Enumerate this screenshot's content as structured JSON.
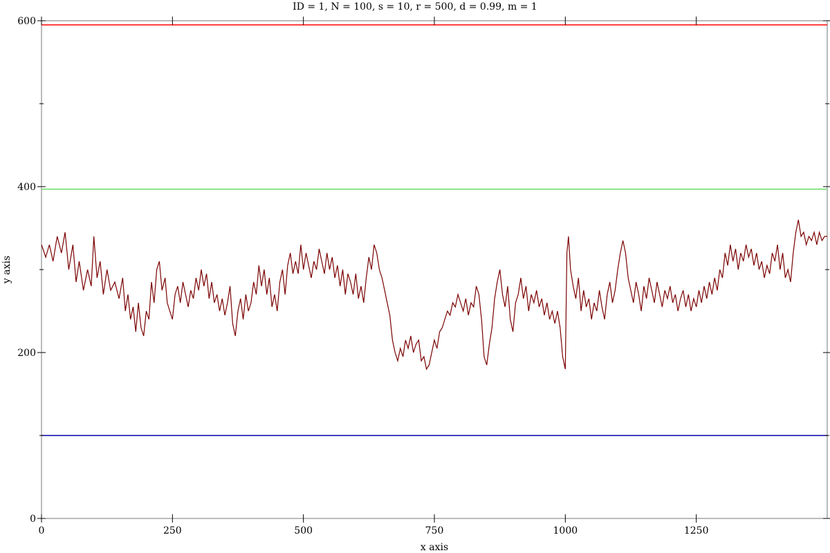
{
  "chart_data": {
    "type": "line",
    "title": "ID = 1, N = 100, s = 10, r = 500, d = 0.99, m = 1",
    "xlabel": "x axis",
    "ylabel": "y axis",
    "xlim": [
      0,
      1500
    ],
    "ylim": [
      0,
      600
    ],
    "x_ticks": [
      0,
      250,
      500,
      750,
      1000,
      1250
    ],
    "y_ticks": [
      0,
      200,
      400,
      600
    ],
    "x_tick_labels": [
      "0",
      "250",
      "500",
      "750",
      "1000",
      "1250"
    ],
    "y_tick_labels": [
      "0",
      "200",
      "400",
      "600"
    ],
    "grid": false,
    "legend": "none",
    "reference_lines": [
      {
        "y": 595,
        "color": "#ff0000"
      },
      {
        "y": 397,
        "color": "#66dd66"
      },
      {
        "y": 100,
        "color": "#0000aa"
      }
    ],
    "series": [
      {
        "color": "#7a0000",
        "points": [
          [
            0,
            330
          ],
          [
            8,
            315
          ],
          [
            15,
            330
          ],
          [
            22,
            310
          ],
          [
            30,
            340
          ],
          [
            38,
            320
          ],
          [
            45,
            345
          ],
          [
            52,
            300
          ],
          [
            60,
            330
          ],
          [
            66,
            285
          ],
          [
            72,
            310
          ],
          [
            80,
            275
          ],
          [
            88,
            300
          ],
          [
            95,
            280
          ],
          [
            100,
            340
          ],
          [
            106,
            290
          ],
          [
            112,
            310
          ],
          [
            118,
            270
          ],
          [
            125,
            300
          ],
          [
            132,
            275
          ],
          [
            140,
            285
          ],
          [
            148,
            265
          ],
          [
            155,
            290
          ],
          [
            160,
            250
          ],
          [
            165,
            270
          ],
          [
            170,
            240
          ],
          [
            175,
            255
          ],
          [
            180,
            225
          ],
          [
            185,
            260
          ],
          [
            190,
            230
          ],
          [
            195,
            220
          ],
          [
            200,
            250
          ],
          [
            205,
            240
          ],
          [
            210,
            285
          ],
          [
            215,
            260
          ],
          [
            220,
            300
          ],
          [
            225,
            310
          ],
          [
            230,
            275
          ],
          [
            236,
            290
          ],
          [
            240,
            260
          ],
          [
            245,
            250
          ],
          [
            250,
            240
          ],
          [
            255,
            270
          ],
          [
            260,
            280
          ],
          [
            265,
            260
          ],
          [
            270,
            285
          ],
          [
            275,
            270
          ],
          [
            280,
            255
          ],
          [
            285,
            275
          ],
          [
            290,
            265
          ],
          [
            295,
            290
          ],
          [
            300,
            275
          ],
          [
            305,
            300
          ],
          [
            310,
            280
          ],
          [
            315,
            295
          ],
          [
            320,
            265
          ],
          [
            325,
            285
          ],
          [
            330,
            260
          ],
          [
            335,
            270
          ],
          [
            340,
            250
          ],
          [
            345,
            265
          ],
          [
            350,
            245
          ],
          [
            355,
            260
          ],
          [
            360,
            280
          ],
          [
            365,
            235
          ],
          [
            370,
            220
          ],
          [
            375,
            250
          ],
          [
            380,
            265
          ],
          [
            385,
            240
          ],
          [
            390,
            270
          ],
          [
            395,
            250
          ],
          [
            400,
            260
          ],
          [
            405,
            285
          ],
          [
            410,
            270
          ],
          [
            415,
            305
          ],
          [
            420,
            280
          ],
          [
            425,
            300
          ],
          [
            430,
            270
          ],
          [
            435,
            290
          ],
          [
            440,
            255
          ],
          [
            445,
            270
          ],
          [
            450,
            250
          ],
          [
            455,
            285
          ],
          [
            460,
            300
          ],
          [
            465,
            270
          ],
          [
            470,
            305
          ],
          [
            475,
            320
          ],
          [
            480,
            295
          ],
          [
            485,
            310
          ],
          [
            490,
            295
          ],
          [
            495,
            330
          ],
          [
            500,
            300
          ],
          [
            505,
            320
          ],
          [
            510,
            305
          ],
          [
            515,
            290
          ],
          [
            520,
            310
          ],
          [
            525,
            300
          ],
          [
            530,
            325
          ],
          [
            535,
            310
          ],
          [
            540,
            295
          ],
          [
            545,
            320
          ],
          [
            550,
            300
          ],
          [
            555,
            315
          ],
          [
            560,
            290
          ],
          [
            565,
            305
          ],
          [
            570,
            280
          ],
          [
            575,
            300
          ],
          [
            580,
            270
          ],
          [
            585,
            295
          ],
          [
            590,
            285
          ],
          [
            595,
            270
          ],
          [
            600,
            295
          ],
          [
            605,
            265
          ],
          [
            610,
            280
          ],
          [
            615,
            260
          ],
          [
            620,
            290
          ],
          [
            625,
            315
          ],
          [
            630,
            300
          ],
          [
            635,
            330
          ],
          [
            640,
            320
          ],
          [
            645,
            300
          ],
          [
            650,
            290
          ],
          [
            655,
            275
          ],
          [
            660,
            260
          ],
          [
            665,
            245
          ],
          [
            670,
            215
          ],
          [
            675,
            200
          ],
          [
            680,
            190
          ],
          [
            685,
            205
          ],
          [
            690,
            195
          ],
          [
            695,
            215
          ],
          [
            700,
            205
          ],
          [
            705,
            220
          ],
          [
            710,
            200
          ],
          [
            715,
            210
          ],
          [
            720,
            215
          ],
          [
            725,
            190
          ],
          [
            730,
            195
          ],
          [
            735,
            180
          ],
          [
            740,
            185
          ],
          [
            745,
            200
          ],
          [
            750,
            215
          ],
          [
            755,
            205
          ],
          [
            760,
            225
          ],
          [
            765,
            230
          ],
          [
            770,
            240
          ],
          [
            775,
            250
          ],
          [
            780,
            245
          ],
          [
            785,
            260
          ],
          [
            790,
            255
          ],
          [
            795,
            270
          ],
          [
            800,
            260
          ],
          [
            805,
            250
          ],
          [
            810,
            265
          ],
          [
            815,
            245
          ],
          [
            820,
            260
          ],
          [
            825,
            255
          ],
          [
            830,
            280
          ],
          [
            835,
            270
          ],
          [
            840,
            240
          ],
          [
            845,
            195
          ],
          [
            850,
            185
          ],
          [
            855,
            210
          ],
          [
            860,
            230
          ],
          [
            865,
            265
          ],
          [
            870,
            285
          ],
          [
            875,
            300
          ],
          [
            880,
            270
          ],
          [
            885,
            255
          ],
          [
            890,
            280
          ],
          [
            895,
            240
          ],
          [
            900,
            225
          ],
          [
            905,
            260
          ],
          [
            910,
            270
          ],
          [
            915,
            290
          ],
          [
            920,
            265
          ],
          [
            925,
            280
          ],
          [
            930,
            250
          ],
          [
            935,
            270
          ],
          [
            940,
            260
          ],
          [
            945,
            275
          ],
          [
            950,
            255
          ],
          [
            955,
            265
          ],
          [
            960,
            245
          ],
          [
            965,
            260
          ],
          [
            970,
            240
          ],
          [
            975,
            250
          ],
          [
            980,
            235
          ],
          [
            985,
            250
          ],
          [
            990,
            230
          ],
          [
            995,
            195
          ],
          [
            1000,
            180
          ],
          [
            1003,
            320
          ],
          [
            1006,
            340
          ],
          [
            1010,
            300
          ],
          [
            1015,
            280
          ],
          [
            1020,
            265
          ],
          [
            1025,
            290
          ],
          [
            1030,
            250
          ],
          [
            1035,
            275
          ],
          [
            1040,
            255
          ],
          [
            1045,
            265
          ],
          [
            1050,
            240
          ],
          [
            1055,
            260
          ],
          [
            1060,
            250
          ],
          [
            1065,
            275
          ],
          [
            1070,
            255
          ],
          [
            1075,
            240
          ],
          [
            1080,
            270
          ],
          [
            1085,
            285
          ],
          [
            1090,
            260
          ],
          [
            1095,
            275
          ],
          [
            1100,
            300
          ],
          [
            1105,
            320
          ],
          [
            1110,
            335
          ],
          [
            1115,
            320
          ],
          [
            1120,
            290
          ],
          [
            1125,
            275
          ],
          [
            1130,
            260
          ],
          [
            1135,
            285
          ],
          [
            1140,
            270
          ],
          [
            1145,
            250
          ],
          [
            1150,
            280
          ],
          [
            1155,
            265
          ],
          [
            1160,
            290
          ],
          [
            1165,
            275
          ],
          [
            1170,
            260
          ],
          [
            1175,
            285
          ],
          [
            1180,
            270
          ],
          [
            1185,
            255
          ],
          [
            1190,
            275
          ],
          [
            1195,
            265
          ],
          [
            1200,
            280
          ],
          [
            1205,
            260
          ],
          [
            1210,
            270
          ],
          [
            1215,
            250
          ],
          [
            1220,
            265
          ],
          [
            1225,
            275
          ],
          [
            1230,
            255
          ],
          [
            1235,
            270
          ],
          [
            1240,
            250
          ],
          [
            1245,
            265
          ],
          [
            1250,
            255
          ],
          [
            1255,
            275
          ],
          [
            1260,
            260
          ],
          [
            1265,
            280
          ],
          [
            1270,
            265
          ],
          [
            1275,
            285
          ],
          [
            1280,
            270
          ],
          [
            1285,
            290
          ],
          [
            1290,
            275
          ],
          [
            1295,
            300
          ],
          [
            1300,
            290
          ],
          [
            1305,
            320
          ],
          [
            1310,
            305
          ],
          [
            1315,
            330
          ],
          [
            1320,
            310
          ],
          [
            1325,
            325
          ],
          [
            1330,
            300
          ],
          [
            1335,
            320
          ],
          [
            1340,
            310
          ],
          [
            1345,
            330
          ],
          [
            1350,
            315
          ],
          [
            1355,
            325
          ],
          [
            1360,
            305
          ],
          [
            1365,
            320
          ],
          [
            1370,
            300
          ],
          [
            1375,
            310
          ],
          [
            1380,
            290
          ],
          [
            1385,
            305
          ],
          [
            1390,
            295
          ],
          [
            1395,
            320
          ],
          [
            1400,
            310
          ],
          [
            1405,
            330
          ],
          [
            1410,
            300
          ],
          [
            1415,
            320
          ],
          [
            1420,
            290
          ],
          [
            1425,
            300
          ],
          [
            1430,
            285
          ],
          [
            1435,
            320
          ],
          [
            1440,
            345
          ],
          [
            1445,
            360
          ],
          [
            1450,
            340
          ],
          [
            1455,
            345
          ],
          [
            1460,
            330
          ],
          [
            1465,
            340
          ],
          [
            1470,
            335
          ],
          [
            1475,
            345
          ],
          [
            1480,
            330
          ],
          [
            1485,
            345
          ],
          [
            1490,
            335
          ],
          [
            1495,
            340
          ],
          [
            1500,
            340
          ]
        ]
      }
    ]
  }
}
